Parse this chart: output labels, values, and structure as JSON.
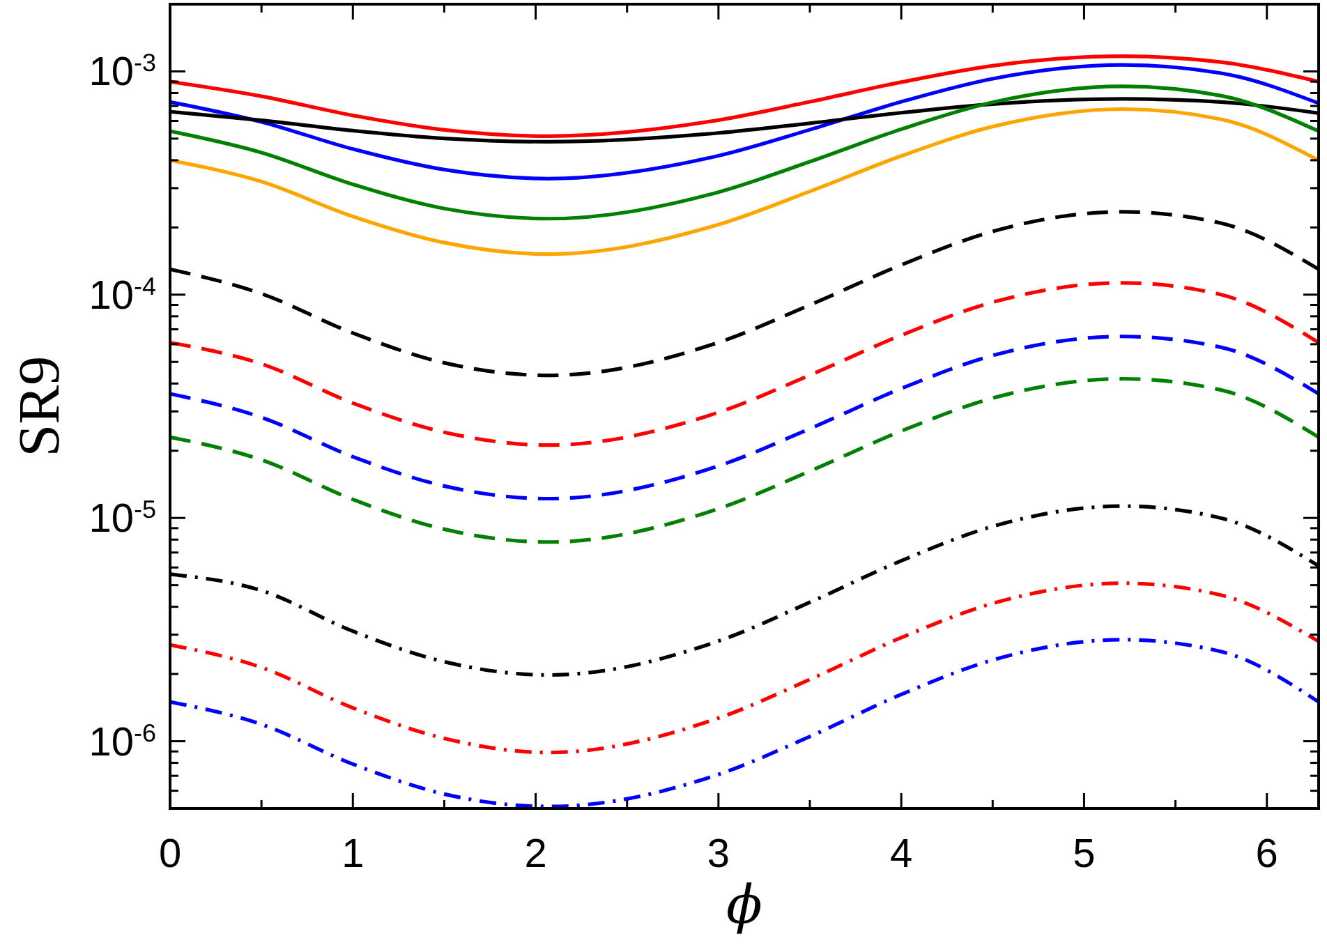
{
  "chart_data": {
    "type": "line",
    "xlabel": "ϕ",
    "ylabel": "SR9",
    "log": "y",
    "grid": false,
    "xlim": [
      0,
      6.2832
    ],
    "xticks": [
      0,
      {
        "value": 0.5,
        "label": null
      },
      1,
      {
        "value": 1.5,
        "label": null
      },
      2,
      {
        "value": 2.5,
        "label": null
      },
      3,
      {
        "value": 3.5,
        "label": null
      },
      4,
      {
        "value": 4.5,
        "label": null
      },
      5,
      {
        "value": 5.5,
        "label": null
      },
      6
    ],
    "ylim": [
      5e-07,
      0.002
    ],
    "yticks": [
      {
        "value": 5e-07,
        "label": null
      },
      {
        "value": 6e-07,
        "label": null
      },
      {
        "value": 7e-07,
        "label": null
      },
      {
        "value": 8e-07,
        "label": null
      },
      {
        "value": 9e-07,
        "label": null
      },
      {
        "value": 1e-06,
        "label": "10$^{-6}$"
      },
      {
        "value": 2e-06,
        "label": null
      },
      {
        "value": 3e-06,
        "label": null
      },
      {
        "value": 4e-06,
        "label": null
      },
      {
        "value": 5e-06,
        "label": null
      },
      {
        "value": 6e-06,
        "label": null
      },
      {
        "value": 7e-06,
        "label": null
      },
      {
        "value": 8e-06,
        "label": null
      },
      {
        "value": 9e-06,
        "label": null
      },
      {
        "value": 1e-05,
        "label": "10$^{-5}$"
      },
      {
        "value": 2e-05,
        "label": null
      },
      {
        "value": 3e-05,
        "label": null
      },
      {
        "value": 4e-05,
        "label": null
      },
      {
        "value": 5e-05,
        "label": null
      },
      {
        "value": 6e-05,
        "label": null
      },
      {
        "value": 7e-05,
        "label": null
      },
      {
        "value": 8e-05,
        "label": null
      },
      {
        "value": 9e-05,
        "label": null
      },
      {
        "value": 0.0001,
        "label": "10$^{-4}$"
      },
      {
        "value": 0.0002,
        "label": null
      },
      {
        "value": 0.0003,
        "label": null
      },
      {
        "value": 0.0004,
        "label": null
      },
      {
        "value": 0.0005,
        "label": null
      },
      {
        "value": 0.0006,
        "label": null
      },
      {
        "value": 0.0007,
        "label": null
      },
      {
        "value": 0.0008,
        "label": null
      },
      {
        "value": 0.0009,
        "label": null
      },
      {
        "value": 0.001,
        "label": "10$^{-3}$"
      },
      {
        "value": 0.002,
        "label": null
      }
    ],
    "x": [
      0,
      0.5,
      1,
      1.5,
      2.07,
      3,
      3.5,
      4,
      4.5,
      5.21,
      5.75,
      6.2832
    ],
    "series": [
      {
        "color": "#ff0000",
        "line_style": "solid",
        "values": [
          0.0009,
          0.000774,
          0.000635,
          0.000547,
          0.000513,
          0.000605,
          0.000731,
          0.000895,
          0.00106,
          0.00117,
          0.0011,
          0.0009
        ]
      },
      {
        "color": "#0000ff",
        "line_style": "solid",
        "values": [
          0.00073,
          0.000594,
          0.000449,
          0.000363,
          0.000331,
          0.000419,
          0.000548,
          0.000731,
          0.000927,
          0.00107,
          0.000982,
          0.00072
        ]
      },
      {
        "color": "#000000",
        "line_style": "solid",
        "values": [
          0.00066,
          0.000604,
          0.000543,
          0.000501,
          0.000484,
          0.00053,
          0.000586,
          0.000653,
          0.000714,
          0.000753,
          0.000729,
          0.00065
        ]
      },
      {
        "color": "#008000",
        "line_style": "solid",
        "values": [
          0.00054,
          0.000433,
          0.000312,
          0.000243,
          0.000219,
          0.000288,
          0.000394,
          0.000551,
          0.000727,
          0.000857,
          0.000778,
          0.00054
        ]
      },
      {
        "color": "#ffa500",
        "line_style": "solid",
        "values": [
          0.0004,
          0.000321,
          0.000224,
          0.000171,
          0.000152,
          0.000206,
          0.00029,
          0.000418,
          0.000566,
          0.000678,
          0.00061,
          0.0004
        ]
      },
      {
        "color": "#000000",
        "line_style": "dashed",
        "values": [
          0.00013,
          0.000101,
          6.73e-05,
          4.95e-05,
          4.35e-05,
          6.11e-05,
          8.99e-05,
          0.000136,
          0.000192,
          0.000235,
          0.000209,
          0.00013
        ]
      },
      {
        "color": "#ff0000",
        "line_style": "dashed",
        "values": [
          6.1e-05,
          4.9e-05,
          3.27e-05,
          2.42e-05,
          2.12e-05,
          2.97e-05,
          4.36e-05,
          6.58e-05,
          9.25e-05,
          0.000113,
          0.0001,
          6.1e-05
        ]
      },
      {
        "color": "#0000ff",
        "line_style": "dashed",
        "values": [
          3.6e-05,
          2.82e-05,
          1.88e-05,
          1.39e-05,
          1.22e-05,
          1.71e-05,
          2.51e-05,
          3.8e-05,
          5.34e-05,
          6.5e-05,
          5.81e-05,
          3.6e-05
        ]
      },
      {
        "color": "#008000",
        "line_style": "dashed",
        "values": [
          2.3e-05,
          1.82e-05,
          1.21e-05,
          8.9e-06,
          7.8e-06,
          1.1e-05,
          1.62e-05,
          2.45e-05,
          3.44e-05,
          4.2e-05,
          3.74e-05,
          2.3e-05
        ]
      },
      {
        "color": "#000000",
        "line_style": "dashdot",
        "values": [
          5.6e-06,
          4.73e-06,
          3.11e-06,
          2.27e-06,
          1.98e-06,
          2.81e-06,
          4.19e-06,
          6.43e-06,
          9.16e-06,
          1.13e-05,
          9.98e-06,
          6.1e-06
        ]
      },
      {
        "color": "#ff0000",
        "line_style": "dashdot",
        "values": [
          2.7e-06,
          2.14e-06,
          1.41e-06,
          1.03e-06,
          8.9e-07,
          1.27e-06,
          1.89e-06,
          2.91e-06,
          4.14e-06,
          5.1e-06,
          4.51e-06,
          2.8e-06
        ]
      },
      {
        "color": "#0000ff",
        "line_style": "dashdot",
        "values": [
          1.5e-06,
          1.19e-06,
          7.9e-07,
          5.8e-07,
          5.1e-07,
          7.1e-07,
          1.05e-06,
          1.62e-06,
          2.31e-06,
          2.85e-06,
          2.52e-06,
          1.5e-06
        ]
      }
    ]
  }
}
